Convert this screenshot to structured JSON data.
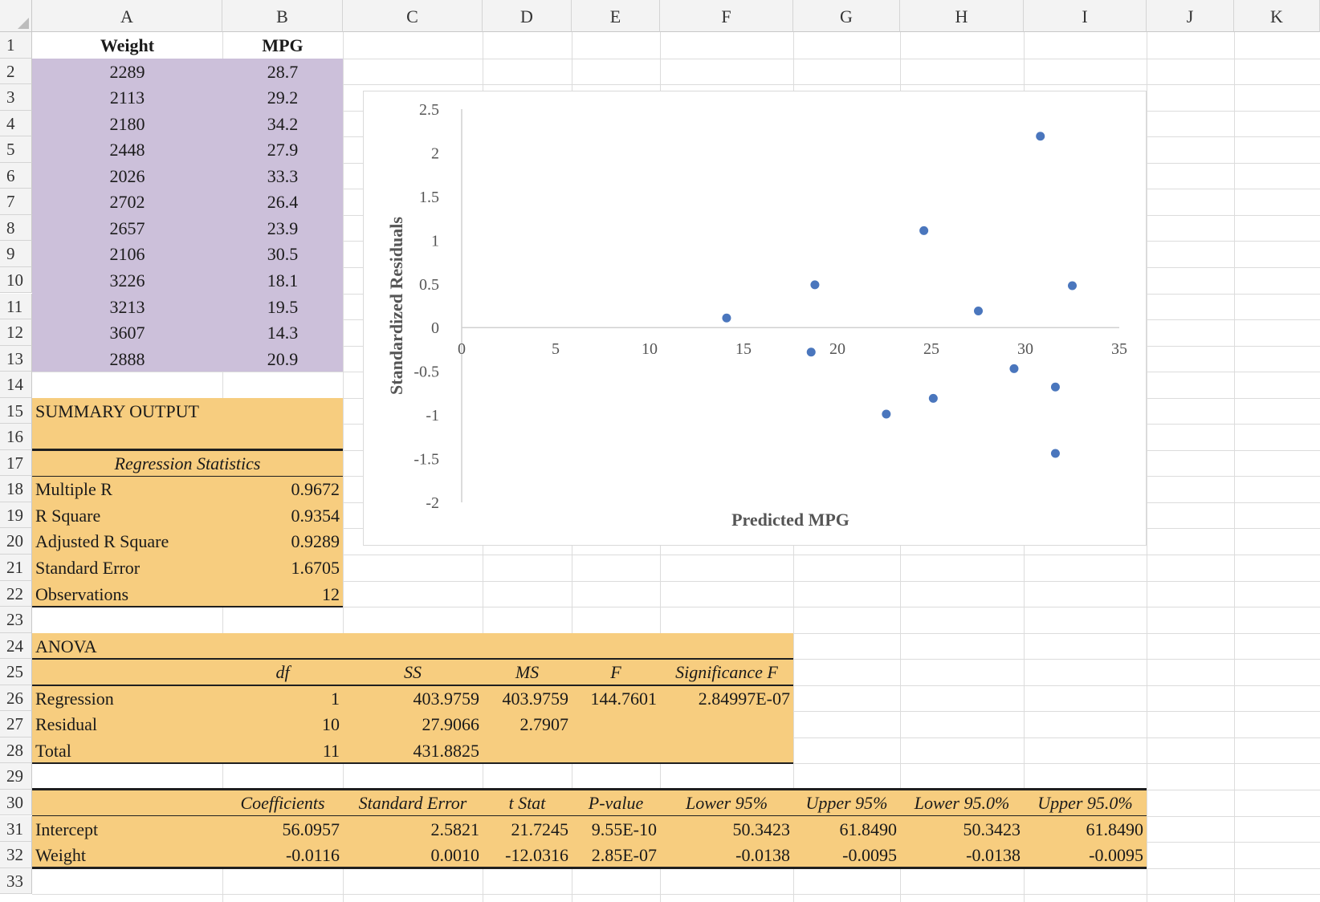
{
  "columns": [
    "A",
    "B",
    "C",
    "D",
    "E",
    "F",
    "G",
    "H",
    "I",
    "J",
    "K"
  ],
  "rows": [
    "1",
    "2",
    "3",
    "4",
    "5",
    "6",
    "7",
    "8",
    "9",
    "10",
    "11",
    "12",
    "13",
    "14",
    "15",
    "16",
    "17",
    "18",
    "19",
    "20",
    "21",
    "22",
    "23",
    "24",
    "25",
    "26",
    "27",
    "28",
    "29",
    "30",
    "31",
    "32",
    "33"
  ],
  "data_table": {
    "headers": [
      "Weight",
      "MPG"
    ],
    "rows": [
      [
        "2289",
        "28.7"
      ],
      [
        "2113",
        "29.2"
      ],
      [
        "2180",
        "34.2"
      ],
      [
        "2448",
        "27.9"
      ],
      [
        "2026",
        "33.3"
      ],
      [
        "2702",
        "26.4"
      ],
      [
        "2657",
        "23.9"
      ],
      [
        "2106",
        "30.5"
      ],
      [
        "3226",
        "18.1"
      ],
      [
        "3213",
        "19.5"
      ],
      [
        "3607",
        "14.3"
      ],
      [
        "2888",
        "20.9"
      ]
    ]
  },
  "summary": {
    "title": "SUMMARY OUTPUT",
    "regression_header": "Regression Statistics",
    "stats": [
      [
        "Multiple R",
        "0.9672"
      ],
      [
        "R Square",
        "0.9354"
      ],
      [
        "Adjusted R Square",
        "0.9289"
      ],
      [
        "Standard Error",
        "1.6705"
      ],
      [
        "Observations",
        "12"
      ]
    ]
  },
  "anova": {
    "title": "ANOVA",
    "headers": [
      "df",
      "SS",
      "MS",
      "F",
      "Significance F"
    ],
    "rows": [
      [
        "Regression",
        "1",
        "403.9759",
        "403.9759",
        "144.7601",
        "2.84997E-07"
      ],
      [
        "Residual",
        "10",
        "27.9066",
        "2.7907",
        "",
        ""
      ],
      [
        "Total",
        "11",
        "431.8825",
        "",
        "",
        ""
      ]
    ]
  },
  "coefficients": {
    "headers": [
      "Coefficients",
      "Standard Error",
      "t Stat",
      "P-value",
      "Lower 95%",
      "Upper 95%",
      "Lower 95.0%",
      "Upper 95.0%"
    ],
    "rows": [
      [
        "Intercept",
        "56.0957",
        "2.5821",
        "21.7245",
        "9.55E-10",
        "50.3423",
        "61.8490",
        "50.3423",
        "61.8490"
      ],
      [
        "Weight",
        "-0.0116",
        "0.0010",
        "-12.0316",
        "2.85E-07",
        "-0.0138",
        "-0.0095",
        "-0.0138",
        "-0.0095"
      ]
    ]
  },
  "chart_data": {
    "type": "scatter",
    "title": "",
    "xlabel": "Predicted MPG",
    "ylabel": "Standardized Residuals",
    "xlim": [
      0,
      35
    ],
    "ylim": [
      -2,
      2.5
    ],
    "xticks": [
      "0",
      "5",
      "10",
      "15",
      "20",
      "25",
      "30",
      "35"
    ],
    "yticks": [
      "2.5",
      "2",
      "1.5",
      "1",
      "0.5",
      "0",
      "-0.5",
      "-1",
      "-1.5",
      "-2"
    ],
    "x": [
      14.1,
      18.6,
      18.8,
      22.6,
      24.6,
      25.1,
      27.5,
      29.4,
      30.8,
      31.6,
      31.6,
      32.5
    ],
    "y": [
      0.11,
      -0.28,
      0.49,
      -0.99,
      1.11,
      -0.81,
      0.19,
      -0.47,
      2.19,
      -0.68,
      -1.44,
      0.48
    ],
    "marker_color": "#4a76bd",
    "grid": false,
    "legend": "none"
  }
}
